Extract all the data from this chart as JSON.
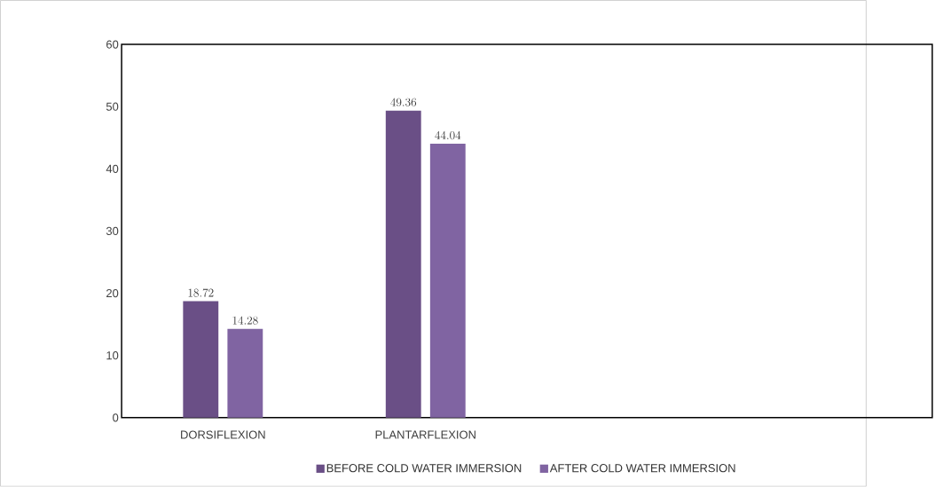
{
  "chart_data": {
    "type": "bar",
    "categories": [
      "DORSIFLEXION",
      "PLANTARFLEXION",
      null,
      null
    ],
    "series": [
      {
        "name": "BEFORE COLD WATER IMMERSION",
        "color": "#6a4f86",
        "values": [
          18.72,
          49.36,
          null,
          null
        ]
      },
      {
        "name": "AFTER COLD WATER IMMERSION",
        "color": "#8064a2",
        "values": [
          14.28,
          44.04,
          null,
          null
        ]
      }
    ],
    "ylim": [
      0,
      60
    ],
    "yticks": [
      0,
      10,
      20,
      30,
      40,
      50,
      60
    ],
    "data_labels": true,
    "legend": "bottom",
    "grid": false
  }
}
